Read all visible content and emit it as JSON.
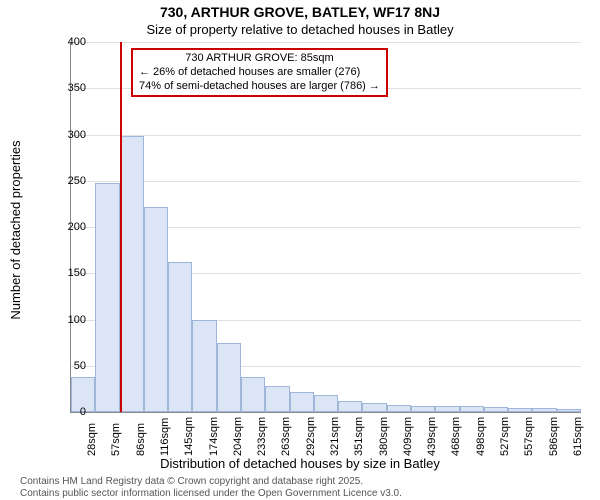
{
  "title": "730, ARTHUR GROVE, BATLEY, WF17 8NJ",
  "subtitle": "Size of property relative to detached houses in Batley",
  "ylabel": "Number of detached properties",
  "xlabel": "Distribution of detached houses by size in Batley",
  "chart_type": "histogram",
  "ylim": [
    0,
    400
  ],
  "ytick_step": 50,
  "yticks": [
    0,
    50,
    100,
    150,
    200,
    250,
    300,
    350,
    400
  ],
  "xticks": [
    "28sqm",
    "57sqm",
    "86sqm",
    "116sqm",
    "145sqm",
    "174sqm",
    "204sqm",
    "233sqm",
    "263sqm",
    "292sqm",
    "321sqm",
    "351sqm",
    "380sqm",
    "409sqm",
    "439sqm",
    "468sqm",
    "498sqm",
    "527sqm",
    "557sqm",
    "586sqm",
    "615sqm"
  ],
  "bars": [
    38,
    248,
    298,
    222,
    162,
    100,
    75,
    38,
    28,
    22,
    18,
    12,
    10,
    8,
    7,
    7,
    6,
    5,
    4,
    4,
    3
  ],
  "bar_fill": "#dbe5f6",
  "bar_stroke": "#9fb5d9",
  "grid_color": "#e0e0e0",
  "axis_color": "#888888",
  "bg_color": "#ffffff",
  "marker_color": "#cc0000",
  "marker_index": 2,
  "annotation": {
    "line1": "730 ARTHUR GROVE: 85sqm",
    "line2": "← 26% of detached houses are smaller (276)",
    "line3": "74% of semi-detached houses are larger (786) →"
  },
  "footer1": "Contains HM Land Registry data © Crown copyright and database right 2025.",
  "footer2": "Contains public sector information licensed under the Open Government Licence v3.0.",
  "text_color": "#000000",
  "footer_color": "#555555",
  "title_fontsize": 14,
  "subtitle_fontsize": 13,
  "label_fontsize": 13,
  "tick_fontsize": 11,
  "annotation_fontsize": 11,
  "footer_fontsize": 10
}
